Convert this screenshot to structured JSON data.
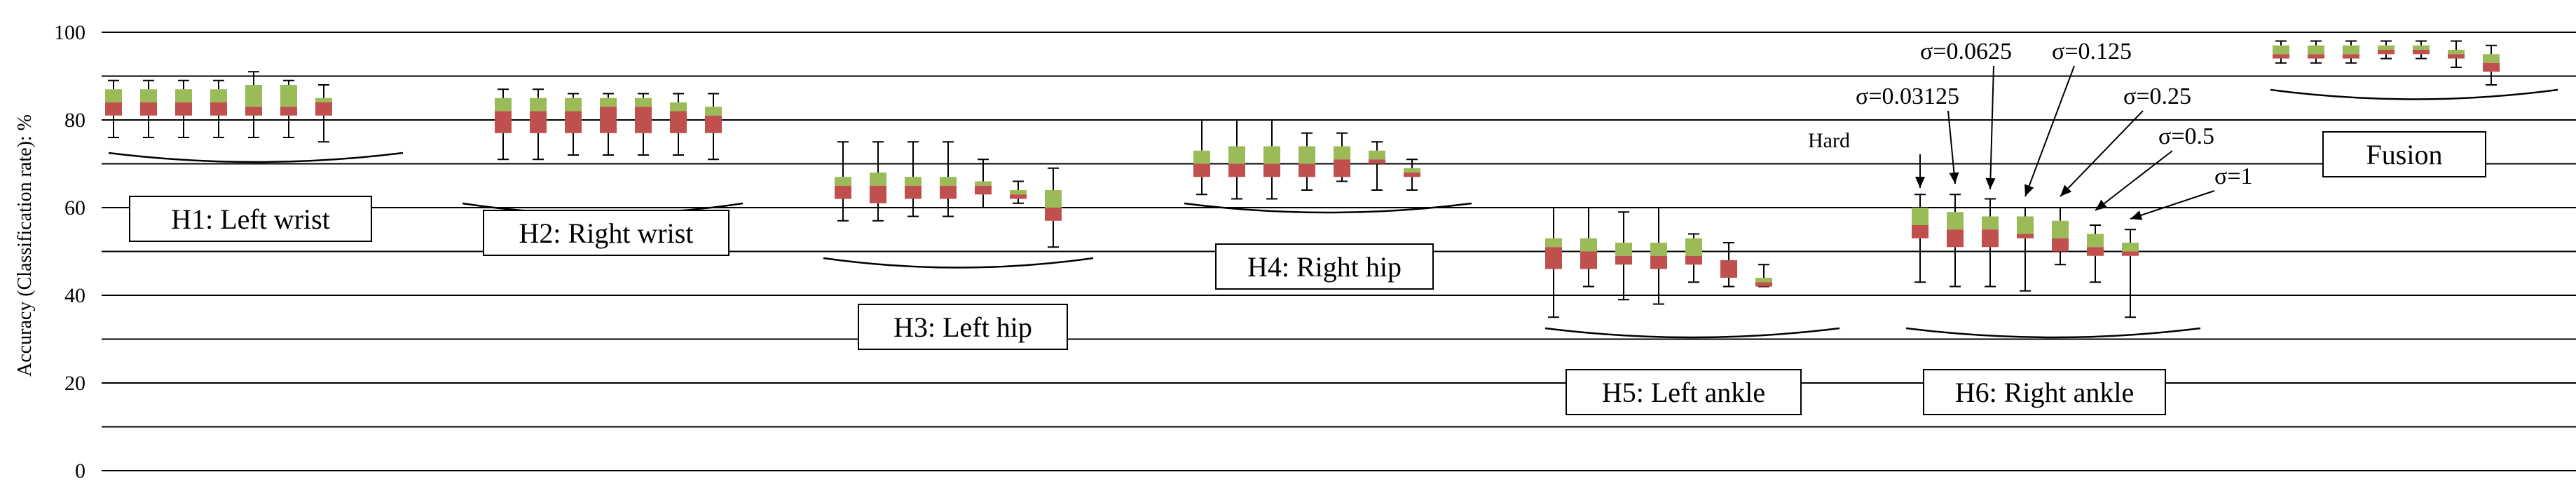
{
  "chart_data": {
    "type": "box",
    "ylabel": "Accuracy (Classification rate): %",
    "ylim": [
      0,
      100
    ],
    "yticks": [
      0,
      20,
      40,
      60,
      80,
      100
    ],
    "grid": true,
    "sigma_labels": [
      "Hard",
      "σ=0.03125",
      "σ=0.0625",
      "σ=0.125",
      "σ=0.25",
      "σ=0.5",
      "σ=1"
    ],
    "groups": [
      {
        "name": "H1: Left wrist",
        "boxes": [
          {
            "min": 76,
            "q1": 81,
            "median": 84,
            "q3": 87,
            "max": 89
          },
          {
            "min": 76,
            "q1": 81,
            "median": 84,
            "q3": 87,
            "max": 89
          },
          {
            "min": 76,
            "q1": 81,
            "median": 84,
            "q3": 87,
            "max": 89
          },
          {
            "min": 76,
            "q1": 81,
            "median": 84,
            "q3": 87,
            "max": 89
          },
          {
            "min": 76,
            "q1": 81,
            "median": 83,
            "q3": 88,
            "max": 91
          },
          {
            "min": 76,
            "q1": 81,
            "median": 83,
            "q3": 88,
            "max": 89
          },
          {
            "min": 75,
            "q1": 81,
            "median": 84,
            "q3": 85,
            "max": 88
          }
        ]
      },
      {
        "name": "H2: Right wrist",
        "boxes": [
          {
            "min": 71,
            "q1": 77,
            "median": 82,
            "q3": 85,
            "max": 87
          },
          {
            "min": 71,
            "q1": 77,
            "median": 82,
            "q3": 85,
            "max": 87
          },
          {
            "min": 72,
            "q1": 77,
            "median": 82,
            "q3": 85,
            "max": 86
          },
          {
            "min": 72,
            "q1": 77,
            "median": 83,
            "q3": 85,
            "max": 86
          },
          {
            "min": 72,
            "q1": 77,
            "median": 83,
            "q3": 85,
            "max": 86
          },
          {
            "min": 72,
            "q1": 77,
            "median": 82,
            "q3": 84,
            "max": 86
          },
          {
            "min": 71,
            "q1": 77,
            "median": 81,
            "q3": 83,
            "max": 86
          }
        ]
      },
      {
        "name": "H3: Left hip",
        "boxes": [
          {
            "min": 57,
            "q1": 62,
            "median": 65,
            "q3": 67,
            "max": 75
          },
          {
            "min": 57,
            "q1": 61,
            "median": 65,
            "q3": 68,
            "max": 75
          },
          {
            "min": 58,
            "q1": 62,
            "median": 65,
            "q3": 67,
            "max": 75
          },
          {
            "min": 58,
            "q1": 62,
            "median": 65,
            "q3": 67,
            "max": 75
          },
          {
            "min": 60,
            "q1": 63,
            "median": 65,
            "q3": 66,
            "max": 71
          },
          {
            "min": 61,
            "q1": 62,
            "median": 63,
            "q3": 64,
            "max": 66
          },
          {
            "min": 51,
            "q1": 57,
            "median": 60,
            "q3": 64,
            "max": 69
          }
        ]
      },
      {
        "name": "H4: Right hip",
        "boxes": [
          {
            "min": 63,
            "q1": 67,
            "median": 70,
            "q3": 73,
            "max": 80
          },
          {
            "min": 62,
            "q1": 67,
            "median": 70,
            "q3": 74,
            "max": 80
          },
          {
            "min": 62,
            "q1": 67,
            "median": 70,
            "q3": 74,
            "max": 80
          },
          {
            "min": 64,
            "q1": 67,
            "median": 70,
            "q3": 74,
            "max": 77
          },
          {
            "min": 66,
            "q1": 67,
            "median": 71,
            "q3": 74,
            "max": 77
          },
          {
            "min": 64,
            "q1": 70,
            "median": 71,
            "q3": 73,
            "max": 75
          },
          {
            "min": 64,
            "q1": 67,
            "median": 68,
            "q3": 69,
            "max": 71
          }
        ]
      },
      {
        "name": "H5: Left ankle",
        "boxes": [
          {
            "min": 35,
            "q1": 46,
            "median": 51,
            "q3": 53,
            "max": 60
          },
          {
            "min": 42,
            "q1": 46,
            "median": 50,
            "q3": 53,
            "max": 60
          },
          {
            "min": 39,
            "q1": 47,
            "median": 49,
            "q3": 52,
            "max": 59
          },
          {
            "min": 38,
            "q1": 46,
            "median": 49,
            "q3": 52,
            "max": 60
          },
          {
            "min": 43,
            "q1": 47,
            "median": 49,
            "q3": 53,
            "max": 54
          },
          {
            "min": 42,
            "q1": 44,
            "median": 48,
            "q3": 48,
            "max": 52
          },
          {
            "min": 42,
            "q1": 42,
            "median": 43,
            "q3": 44,
            "max": 47
          }
        ]
      },
      {
        "name": "H6: Right ankle",
        "boxes": [
          {
            "min": 43,
            "q1": 53,
            "median": 56,
            "q3": 60,
            "max": 63
          },
          {
            "min": 42,
            "q1": 51,
            "median": 55,
            "q3": 59,
            "max": 63
          },
          {
            "min": 42,
            "q1": 51,
            "median": 55,
            "q3": 58,
            "max": 62
          },
          {
            "min": 41,
            "q1": 53,
            "median": 54,
            "q3": 58,
            "max": 60
          },
          {
            "min": 47,
            "q1": 50,
            "median": 53,
            "q3": 57,
            "max": 60
          },
          {
            "min": 43,
            "q1": 49,
            "median": 51,
            "q3": 54,
            "max": 56
          },
          {
            "min": 35,
            "q1": 49,
            "median": 50,
            "q3": 52,
            "max": 55
          }
        ]
      },
      {
        "name": "Fusion",
        "boxes": [
          {
            "min": 93,
            "q1": 94,
            "median": 95,
            "q3": 97,
            "max": 98
          },
          {
            "min": 93,
            "q1": 94,
            "median": 95,
            "q3": 97,
            "max": 98
          },
          {
            "min": 93,
            "q1": 94,
            "median": 95,
            "q3": 97,
            "max": 98
          },
          {
            "min": 94,
            "q1": 95,
            "median": 96,
            "q3": 97,
            "max": 98
          },
          {
            "min": 94,
            "q1": 95,
            "median": 96,
            "q3": 97,
            "max": 98
          },
          {
            "min": 92,
            "q1": 94,
            "median": 95,
            "q3": 96,
            "max": 98
          },
          {
            "min": 88,
            "q1": 91,
            "median": 93,
            "q3": 95,
            "max": 97
          }
        ]
      }
    ]
  },
  "colors": {
    "lower_quartile": "#c0504d",
    "upper_quartile": "#9bbb59",
    "grid": "#000000"
  }
}
